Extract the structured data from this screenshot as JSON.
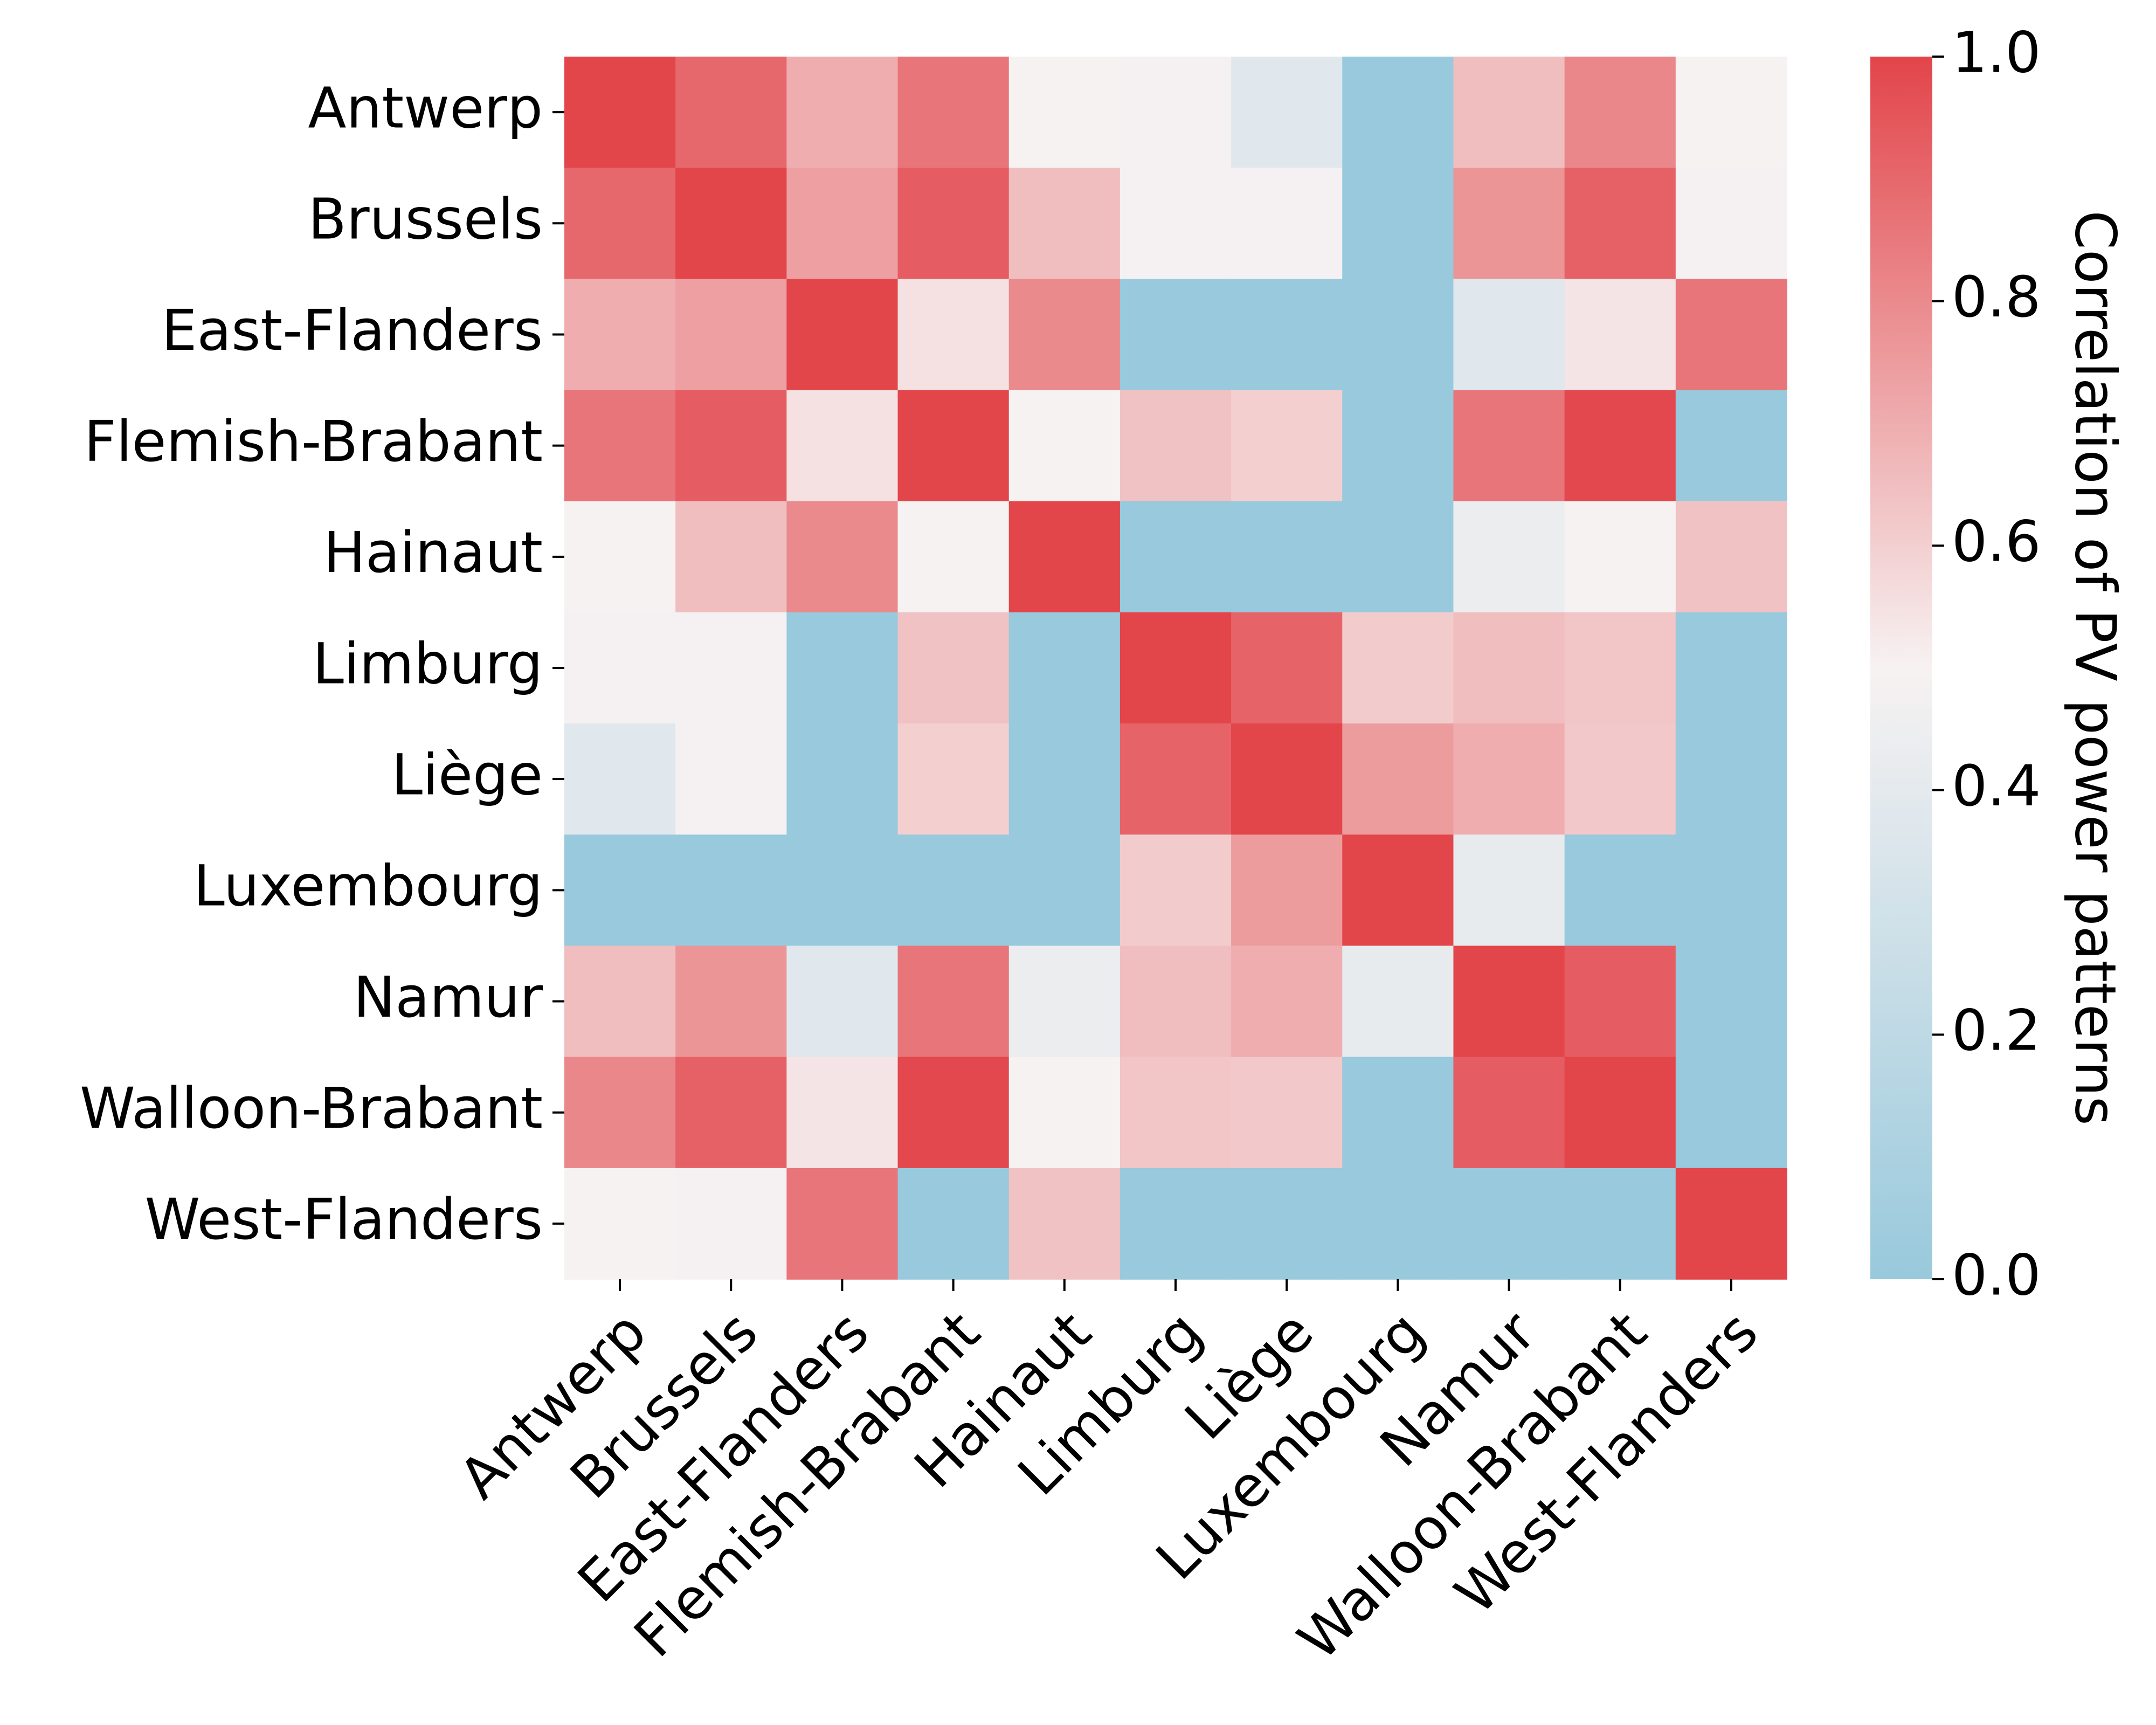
{
  "chart_data": {
    "type": "heatmap",
    "rows": [
      "Antwerp",
      "Brussels",
      "East-Flanders",
      "Flemish-Brabant",
      "Hainaut",
      "Limburg",
      "Liège",
      "Luxembourg",
      "Namur",
      "Walloon-Brabant",
      "West-Flanders"
    ],
    "columns": [
      "Antwerp",
      "Brussels",
      "East-Flanders",
      "Flemish-Brabant",
      "Hainaut",
      "Limburg",
      "Liège",
      "Luxembourg",
      "Namur",
      "Walloon-Brabant",
      "West-Flanders"
    ],
    "values": [
      [
        1.0,
        0.9,
        0.7,
        0.86,
        0.5,
        0.49,
        0.38,
        0.0,
        0.65,
        0.81,
        0.5
      ],
      [
        0.9,
        1.0,
        0.74,
        0.93,
        0.65,
        0.49,
        0.49,
        0.0,
        0.77,
        0.92,
        0.49
      ],
      [
        0.7,
        0.74,
        1.0,
        0.55,
        0.8,
        0.0,
        0.0,
        0.0,
        0.38,
        0.54,
        0.86
      ],
      [
        0.86,
        0.93,
        0.55,
        1.0,
        0.5,
        0.64,
        0.6,
        0.0,
        0.86,
        0.99,
        0.0
      ],
      [
        0.5,
        0.65,
        0.8,
        0.5,
        1.0,
        0.0,
        0.0,
        0.0,
        0.44,
        0.5,
        0.64
      ],
      [
        0.49,
        0.49,
        0.0,
        0.64,
        0.0,
        1.0,
        0.91,
        0.61,
        0.65,
        0.63,
        0.0
      ],
      [
        0.38,
        0.49,
        0.0,
        0.6,
        0.0,
        0.91,
        1.0,
        0.75,
        0.7,
        0.62,
        0.0
      ],
      [
        0.0,
        0.0,
        0.0,
        0.0,
        0.0,
        0.61,
        0.75,
        1.0,
        0.42,
        0.0,
        0.0
      ],
      [
        0.65,
        0.77,
        0.38,
        0.86,
        0.44,
        0.65,
        0.7,
        0.42,
        1.0,
        0.93,
        0.0
      ],
      [
        0.81,
        0.92,
        0.54,
        0.99,
        0.5,
        0.63,
        0.62,
        0.0,
        0.93,
        1.0,
        0.0
      ],
      [
        0.5,
        0.49,
        0.86,
        0.0,
        0.64,
        0.0,
        0.0,
        0.0,
        0.0,
        0.0,
        1.0
      ]
    ],
    "colorbar": {
      "label": "Correlation of PV power patterns",
      "min": 0.0,
      "max": 1.0,
      "ticks": [
        "0.0",
        "0.2",
        "0.4",
        "0.6",
        "0.8",
        "1.0"
      ],
      "colors": [
        "#98c9dc",
        "#f7f2f2",
        "#e2454a"
      ]
    },
    "grid": false
  }
}
